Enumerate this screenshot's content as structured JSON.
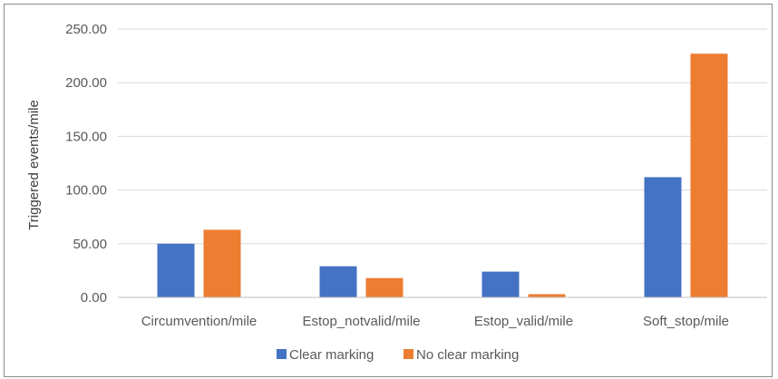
{
  "chart_data": {
    "type": "bar",
    "title": "",
    "xlabel": "",
    "ylabel": "Triggered events/mile",
    "categories": [
      "Circumvention/mile",
      "Estop_notvalid/mile",
      "Estop_valid/mile",
      "Soft_stop/mile"
    ],
    "series": [
      {
        "name": "Clear marking",
        "color": "#4472c4",
        "values": [
          50,
          29,
          24,
          112
        ]
      },
      {
        "name": "No clear marking",
        "color": "#ed7d31",
        "values": [
          63,
          18,
          3,
          227
        ]
      }
    ],
    "ylim": [
      0,
      250
    ],
    "yticks": [
      "0.00",
      "50.00",
      "100.00",
      "150.00",
      "200.00",
      "250.00"
    ],
    "grid": true,
    "legend": "bottom"
  }
}
